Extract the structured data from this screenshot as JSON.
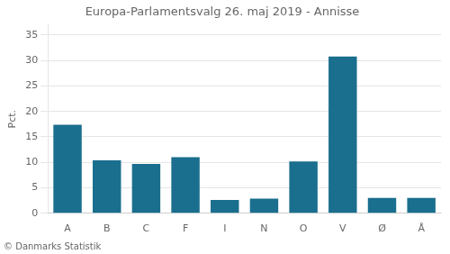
{
  "chart_data": {
    "type": "bar",
    "title": "Europa-Parlamentsvalg 26. maj 2019 - Annisse",
    "categories": [
      "A",
      "B",
      "C",
      "F",
      "I",
      "N",
      "O",
      "V",
      "Ø",
      "Å"
    ],
    "values": [
      17.4,
      10.4,
      9.7,
      11.0,
      2.6,
      2.9,
      10.2,
      30.8,
      3.0,
      3.0
    ],
    "color": "#1a6e8e",
    "ylabel": "Pct.",
    "ylim": [
      0,
      37
    ],
    "yticks": [
      0,
      5,
      10,
      15,
      20,
      25,
      30,
      35
    ],
    "grid": true,
    "annotations": [
      "© Danmarks Statistik"
    ]
  }
}
